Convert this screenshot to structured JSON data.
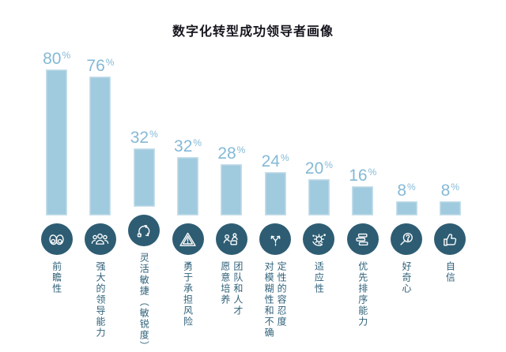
{
  "title": "数字化转型成功领导者画像",
  "colors": {
    "background": "#ffffff",
    "title_text": "#16161e",
    "bar_fill": "#a0cade",
    "bar_edge": "#c6dfea",
    "value_text": "#84b9d6",
    "circle_bg": "#2e5d73",
    "icon_stroke": "#ffffff",
    "label_text": "#2f6179"
  },
  "chart_data": {
    "type": "bar",
    "title": "数字化转型成功领导者画像",
    "value_unit": "%",
    "show_axes": false,
    "legend": null,
    "categories": [
      "前瞻性",
      "强大的领导能力",
      "灵活敏捷（敏锐度）",
      "勇于承担风险",
      "愿意培养团队和人才",
      "对模糊性和不确定性的容忍度",
      "适应性",
      "优先排序能力",
      "好奇心",
      "自信"
    ],
    "values": [
      80,
      76,
      32,
      32,
      28,
      24,
      20,
      16,
      8,
      8
    ],
    "bars": [
      {
        "value": 80,
        "label": "80",
        "unit": "%",
        "icon": "binoculars-icon",
        "lines": [
          "前瞻性"
        ]
      },
      {
        "value": 76,
        "label": "76",
        "unit": "%",
        "icon": "leadership-team-icon",
        "lines": [
          "强大的领导能力"
        ]
      },
      {
        "value": 32,
        "label": "32",
        "unit": "%",
        "icon": "agile-cycle-icon",
        "lines": [
          "灵活敏捷（敏锐度）"
        ]
      },
      {
        "value": 32,
        "label": "32",
        "unit": "%",
        "icon": "risk-warning-icon",
        "lines": [
          "勇于承担风险"
        ]
      },
      {
        "value": 28,
        "label": "28",
        "unit": "%",
        "icon": "talent-development-icon",
        "lines": [
          "愿意培养",
          "团队和人才"
        ]
      },
      {
        "value": 24,
        "label": "24",
        "unit": "%",
        "icon": "branching-arrows-icon",
        "lines": [
          "对模糊性和不确",
          "定性的容忍度"
        ]
      },
      {
        "value": 20,
        "label": "20",
        "unit": "%",
        "icon": "adaptability-gear-icon",
        "lines": [
          "适应性"
        ]
      },
      {
        "value": 16,
        "label": "16",
        "unit": "%",
        "icon": "prioritization-icon",
        "lines": [
          "优先排序能力"
        ]
      },
      {
        "value": 8,
        "label": "8",
        "unit": "%",
        "icon": "curiosity-magnifier-icon",
        "lines": [
          "好奇心"
        ]
      },
      {
        "value": 8,
        "label": "8",
        "unit": "%",
        "icon": "thumbs-up-icon",
        "lines": [
          "自信"
        ]
      }
    ]
  }
}
